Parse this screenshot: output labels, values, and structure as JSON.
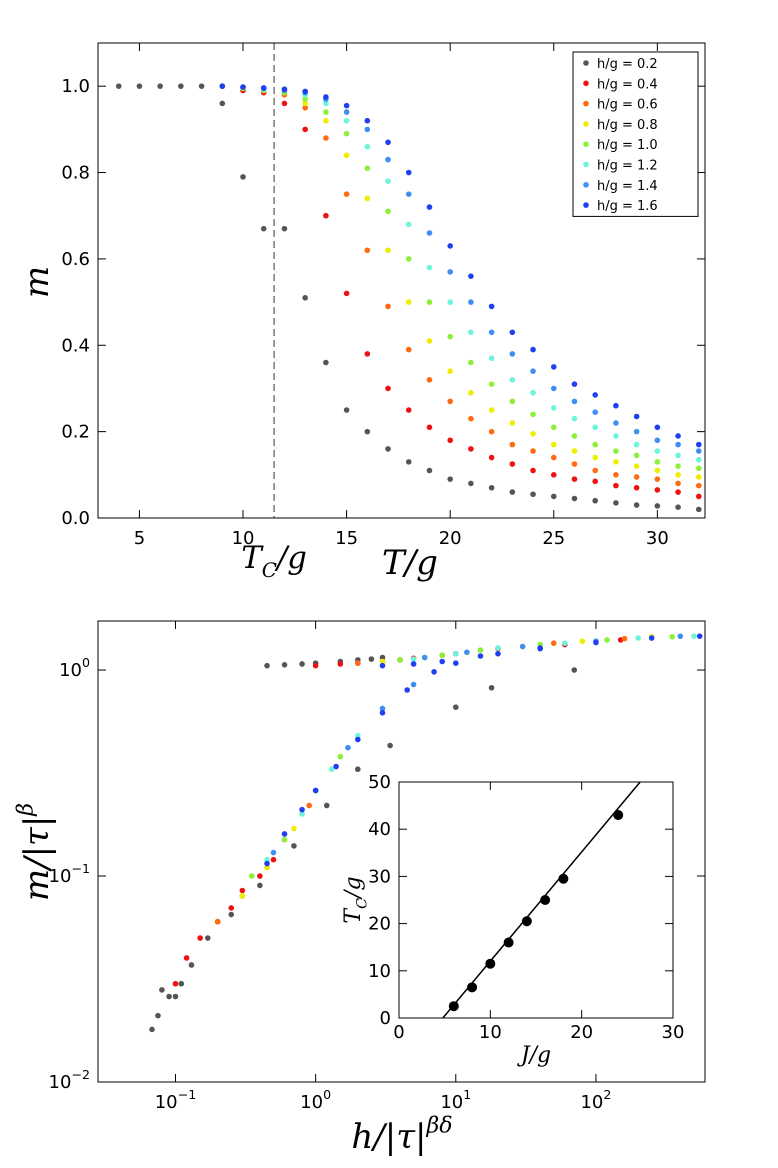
{
  "chart_data": [
    {
      "type": "scatter",
      "xlabel": "T/g",
      "ylabel": "m",
      "annotation": {
        "base": "T",
        "sub": "C",
        "rest": "/g"
      },
      "vline": 11.5,
      "xlim": [
        3,
        32.3
      ],
      "ylim": [
        0,
        1.1
      ],
      "xticks": [
        5,
        10,
        15,
        20,
        25,
        30
      ],
      "yticks": [
        {
          "value": 0,
          "label": "0.0"
        },
        {
          "value": 0.2,
          "label": "0.2"
        },
        {
          "value": 0.4,
          "label": "0.4"
        },
        {
          "value": 0.6,
          "label": "0.6"
        },
        {
          "value": 0.8,
          "label": "0.8"
        },
        {
          "value": 1.0,
          "label": "1.0"
        }
      ],
      "legend": "upper right",
      "x": [
        4,
        5,
        6,
        7,
        8,
        9,
        10,
        11,
        12,
        13,
        14,
        15,
        16,
        17,
        18,
        19,
        20,
        21,
        22,
        23,
        24,
        25,
        26,
        27,
        28,
        29,
        30,
        31,
        32
      ],
      "series": [
        {
          "name": "h/g = 0.2",
          "color": "#555555",
          "values": [
            1.0,
            1.0,
            1.0,
            1.0,
            1.0,
            0.96,
            0.79,
            0.67,
            0.67,
            0.51,
            0.36,
            0.25,
            0.2,
            0.16,
            0.13,
            0.11,
            0.09,
            0.08,
            0.07,
            0.06,
            0.055,
            0.05,
            0.045,
            0.04,
            0.035,
            0.03,
            0.028,
            0.025,
            0.02
          ]
        },
        {
          "name": "h/g = 0.4",
          "color": "#ee1111",
          "values": [
            null,
            null,
            null,
            null,
            null,
            1.0,
            0.99,
            0.985,
            0.96,
            0.9,
            0.7,
            0.52,
            0.38,
            0.3,
            0.25,
            0.21,
            0.18,
            0.16,
            0.14,
            0.125,
            0.11,
            0.1,
            0.09,
            0.085,
            0.075,
            0.07,
            0.065,
            0.06,
            0.05
          ]
        },
        {
          "name": "h/g = 0.6",
          "color": "#ff6a10",
          "values": [
            null,
            null,
            null,
            null,
            null,
            1.0,
            0.995,
            0.99,
            0.98,
            0.95,
            0.88,
            0.75,
            0.62,
            0.49,
            0.39,
            0.32,
            0.27,
            0.23,
            0.2,
            0.17,
            0.155,
            0.14,
            0.125,
            0.11,
            0.1,
            0.095,
            0.09,
            0.08,
            0.075
          ]
        },
        {
          "name": "h/g = 0.8",
          "color": "#eeee00",
          "values": [
            null,
            null,
            null,
            null,
            null,
            1.0,
            0.995,
            0.99,
            0.985,
            0.96,
            0.92,
            0.84,
            0.74,
            0.62,
            0.5,
            0.41,
            0.34,
            0.29,
            0.25,
            0.22,
            0.195,
            0.17,
            0.155,
            0.14,
            0.13,
            0.12,
            0.11,
            0.1,
            0.095
          ]
        },
        {
          "name": "h/g = 1.0",
          "color": "#8cf03a",
          "values": [
            null,
            null,
            null,
            null,
            null,
            1.0,
            0.995,
            0.99,
            0.985,
            0.97,
            0.94,
            0.89,
            0.81,
            0.71,
            0.6,
            0.5,
            0.42,
            0.36,
            0.31,
            0.27,
            0.24,
            0.21,
            0.19,
            0.17,
            0.155,
            0.145,
            0.13,
            0.12,
            0.115
          ]
        },
        {
          "name": "h/g = 1.2",
          "color": "#6cf5dc",
          "values": [
            null,
            null,
            null,
            null,
            null,
            1.0,
            0.997,
            0.993,
            0.99,
            0.98,
            0.96,
            0.92,
            0.86,
            0.78,
            0.68,
            0.58,
            0.5,
            0.43,
            0.37,
            0.32,
            0.29,
            0.255,
            0.23,
            0.21,
            0.19,
            0.17,
            0.155,
            0.145,
            0.135
          ]
        },
        {
          "name": "h/g = 1.4",
          "color": "#3d8ff5",
          "values": [
            null,
            null,
            null,
            null,
            null,
            1.0,
            0.998,
            0.995,
            0.99,
            0.985,
            0.97,
            0.94,
            0.9,
            0.83,
            0.75,
            0.66,
            0.57,
            0.5,
            0.43,
            0.38,
            0.34,
            0.3,
            0.27,
            0.245,
            0.22,
            0.2,
            0.18,
            0.17,
            0.155
          ]
        },
        {
          "name": "h/g = 1.6",
          "color": "#2040f0",
          "values": [
            null,
            null,
            null,
            null,
            null,
            1.0,
            0.998,
            0.996,
            0.993,
            0.988,
            0.975,
            0.955,
            0.92,
            0.87,
            0.8,
            0.72,
            0.63,
            0.56,
            0.49,
            0.43,
            0.39,
            0.35,
            0.31,
            0.285,
            0.26,
            0.235,
            0.21,
            0.19,
            0.17
          ]
        }
      ]
    },
    {
      "type": "scatter",
      "xlog": true,
      "ylog": true,
      "xlabel": {
        "base": "h/|τ|",
        "sup": "βδ"
      },
      "ylabel": {
        "base": "m/|τ|",
        "sup": "β"
      },
      "xlim": [
        0.028,
        600
      ],
      "ylim": [
        0.01,
        1.73
      ],
      "xticks": [
        {
          "value": 0.1,
          "label": "10",
          "exponent": "−1"
        },
        {
          "value": 1,
          "label": "10",
          "exponent": "0"
        },
        {
          "value": 10,
          "label": "10",
          "exponent": "1"
        },
        {
          "value": 100,
          "label": "10",
          "exponent": "2"
        }
      ],
      "yticks": [
        {
          "value": 0.01,
          "label": "10",
          "exponent": "−2"
        },
        {
          "value": 0.1,
          "label": "10",
          "exponent": "−1"
        },
        {
          "value": 1,
          "label": "10",
          "exponent": "0"
        }
      ],
      "series": [
        {
          "color": "#555555",
          "x": [
            0.068,
            0.075,
            0.08,
            0.09,
            0.1,
            0.11,
            0.13,
            0.17,
            0.25,
            0.4,
            0.7,
            1.2,
            2,
            3.4,
            10,
            18,
            70,
            0.45,
            0.6,
            0.8,
            1.0,
            1.5,
            2.0,
            2.5,
            3.0,
            4.0
          ],
          "values": [
            0.018,
            0.021,
            0.028,
            0.026,
            0.026,
            0.03,
            0.037,
            0.05,
            0.065,
            0.09,
            0.14,
            0.22,
            0.33,
            0.43,
            0.66,
            0.82,
            1.0,
            1.05,
            1.06,
            1.07,
            1.08,
            1.1,
            1.12,
            1.13,
            1.15,
            1.12
          ]
        },
        {
          "color": "#ee1111",
          "x": [
            0.1,
            0.12,
            0.15,
            0.2,
            0.25,
            0.3,
            0.4,
            0.5,
            1,
            1.5,
            2,
            3,
            5,
            10,
            20,
            60,
            150
          ],
          "values": [
            0.03,
            0.04,
            0.05,
            0.06,
            0.07,
            0.085,
            0.1,
            0.12,
            1.05,
            1.07,
            1.08,
            1.1,
            1.14,
            1.2,
            1.27,
            1.33,
            1.4
          ]
        },
        {
          "color": "#ff6a10",
          "x": [
            0.2,
            0.3,
            0.45,
            0.6,
            0.9,
            2,
            4,
            8,
            20,
            50,
            160
          ],
          "values": [
            0.06,
            0.08,
            0.11,
            0.15,
            0.22,
            1.08,
            1.12,
            1.18,
            1.27,
            1.35,
            1.42
          ]
        },
        {
          "color": "#eeee00",
          "x": [
            0.3,
            0.45,
            0.7,
            1.0,
            3,
            6,
            12,
            30,
            80,
            250
          ],
          "values": [
            0.08,
            0.11,
            0.17,
            0.26,
            1.1,
            1.15,
            1.22,
            1.3,
            1.38,
            1.45
          ]
        },
        {
          "color": "#8cf03a",
          "x": [
            0.35,
            0.6,
            1.0,
            1.5,
            4,
            8,
            15,
            40,
            120,
            350
          ],
          "values": [
            0.1,
            0.15,
            0.26,
            0.38,
            1.12,
            1.18,
            1.25,
            1.33,
            1.4,
            1.45
          ]
        },
        {
          "color": "#6cf5dc",
          "x": [
            0.45,
            0.8,
            1.3,
            2,
            3,
            5,
            10,
            20,
            60,
            200,
            500
          ],
          "values": [
            0.12,
            0.2,
            0.33,
            0.48,
            0.65,
            1.13,
            1.2,
            1.28,
            1.35,
            1.43,
            1.46
          ]
        },
        {
          "color": "#3d8ff5",
          "x": [
            0.5,
            1,
            1.7,
            3,
            5,
            6,
            12,
            30,
            100,
            400
          ],
          "values": [
            0.13,
            0.26,
            0.42,
            0.65,
            0.85,
            1.15,
            1.22,
            1.3,
            1.38,
            1.46
          ]
        },
        {
          "color": "#2040f0",
          "x": [
            0.45,
            0.6,
            0.8,
            1.0,
            1.4,
            2,
            3,
            4.5,
            7,
            10,
            20,
            40,
            3,
            5,
            8,
            15,
            40,
            100,
            250,
            550
          ],
          "values": [
            0.115,
            0.16,
            0.21,
            0.26,
            0.34,
            0.46,
            0.62,
            0.8,
            0.98,
            1.08,
            1.2,
            1.28,
            1.05,
            1.07,
            1.1,
            1.17,
            1.27,
            1.36,
            1.43,
            1.46
          ]
        }
      ]
    },
    {
      "type": "scatter",
      "xlabel": "J/g",
      "ylabel": {
        "base": "T",
        "sub": "C",
        "rest": "/g"
      },
      "xlim": [
        0,
        30
      ],
      "ylim": [
        0,
        50
      ],
      "xticks": [
        0,
        10,
        20,
        30
      ],
      "yticks": [
        0,
        10,
        20,
        30,
        40,
        50
      ],
      "series": [
        {
          "color": "#000000",
          "x": [
            6,
            8,
            10,
            12,
            14,
            16,
            18,
            24
          ],
          "values": [
            2.5,
            6.5,
            11.5,
            16,
            20.5,
            25,
            29.5,
            43
          ]
        }
      ],
      "line": {
        "color": "#000000",
        "x": [
          4.8,
          26.4
        ],
        "values": [
          0,
          50
        ]
      }
    }
  ]
}
